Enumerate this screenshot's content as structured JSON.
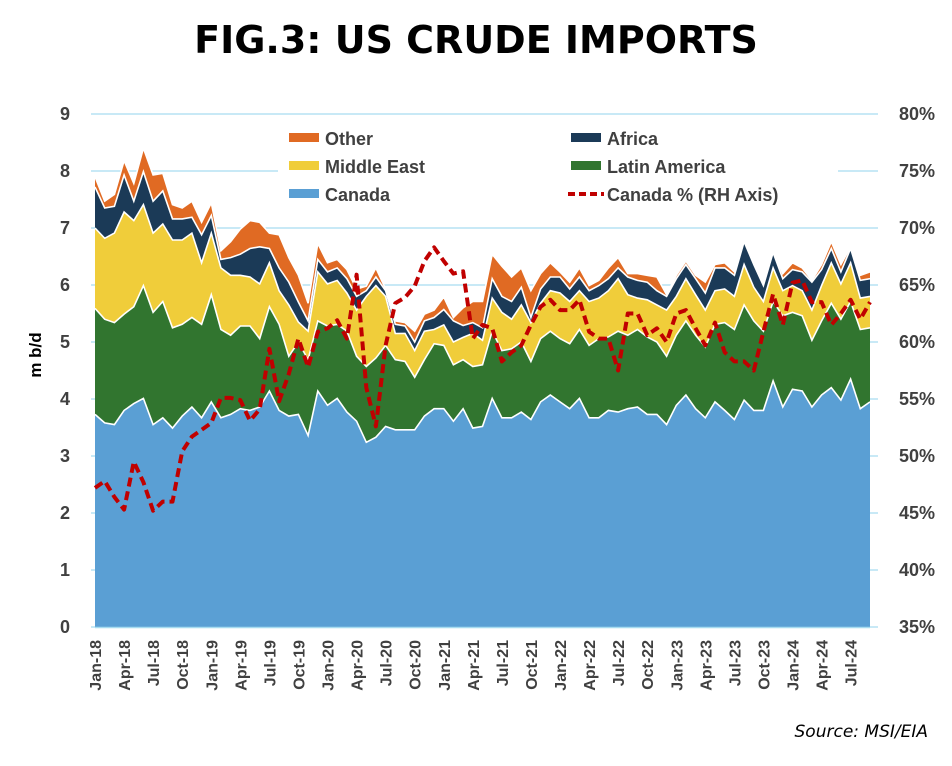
{
  "title": "FIG.3: US CRUDE IMPORTS",
  "source": "Source: MSI/EIA",
  "chart_data": {
    "type": "area",
    "stacked": true,
    "title": "FIG.3: US CRUDE IMPORTS",
    "ylabel": "m b/d",
    "ylim": [
      0,
      9
    ],
    "yticks": [
      "0",
      "1",
      "2",
      "3",
      "4",
      "5",
      "6",
      "7",
      "8",
      "9"
    ],
    "y2label": "Canada % (RH Axis)",
    "y2lim": [
      35,
      80
    ],
    "y2ticks": [
      "35%",
      "40%",
      "45%",
      "50%",
      "55%",
      "60%",
      "65%",
      "70%",
      "75%",
      "80%"
    ],
    "grid": true,
    "legend_placement": "top",
    "xticks": [
      "Jan-18",
      "Apr-18",
      "Jul-18",
      "Oct-18",
      "Jan-19",
      "Apr-19",
      "Jul-19",
      "Oct-19",
      "Jan-20",
      "Apr-20",
      "Jul-20",
      "Oct-20",
      "Jan-21",
      "Apr-21",
      "Jul-21",
      "Oct-21",
      "Jan-22",
      "Apr-22",
      "Jul-22",
      "Oct-22",
      "Jan-23",
      "Apr-23",
      "Jul-23",
      "Oct-23",
      "Jan-24",
      "Apr-24",
      "Jul-24"
    ],
    "x_range": [
      "Jan-18",
      "Sep-24"
    ],
    "months_count": 81,
    "colors": {
      "Canada": "#5a9fd4",
      "Latin America": "#31752f",
      "Middle East": "#f0cd3a",
      "Africa": "#1b3a57",
      "Other": "#e06a23",
      "Canada %": "#c00000",
      "grid": "#a6dcf0"
    },
    "legend": [
      {
        "name": "Other",
        "kind": "area"
      },
      {
        "name": "Africa",
        "kind": "area"
      },
      {
        "name": "Middle East",
        "kind": "area"
      },
      {
        "name": "Latin America",
        "kind": "area"
      },
      {
        "name": "Canada",
        "kind": "area"
      },
      {
        "name": "Canada % (RH Axis)",
        "kind": "dashed-line"
      }
    ],
    "series": [
      {
        "name": "Canada",
        "values": [
          3.73,
          3.58,
          3.55,
          3.8,
          3.92,
          4.01,
          3.55,
          3.67,
          3.49,
          3.7,
          3.86,
          3.67,
          3.95,
          3.67,
          3.73,
          3.83,
          3.8,
          3.86,
          4.14,
          3.8,
          3.7,
          3.73,
          3.36,
          4.14,
          3.89,
          4.01,
          3.77,
          3.61,
          3.24,
          3.33,
          3.52,
          3.46,
          3.46,
          3.46,
          3.7,
          3.83,
          3.83,
          3.61,
          3.83,
          3.49,
          3.52,
          4.01,
          3.67,
          3.67,
          3.77,
          3.64,
          3.95,
          4.07,
          3.95,
          3.83,
          4.01,
          3.67,
          3.67,
          3.8,
          3.77,
          3.83,
          3.86,
          3.73,
          3.73,
          3.55,
          3.89,
          4.07,
          3.83,
          3.67,
          3.95,
          3.8,
          3.64,
          3.98,
          3.8,
          3.8,
          4.32,
          3.86,
          4.17,
          4.14,
          3.86,
          4.07,
          4.2,
          3.98,
          4.35,
          3.83,
          3.95
        ]
      },
      {
        "name": "Latin America",
        "values": [
          1.86,
          1.82,
          1.79,
          1.69,
          1.7,
          1.98,
          1.97,
          2.04,
          1.76,
          1.61,
          1.57,
          1.64,
          1.88,
          1.55,
          1.39,
          1.45,
          1.48,
          1.2,
          1.48,
          1.51,
          1.05,
          1.27,
          1.33,
          1.23,
          1.39,
          1.3,
          1.42,
          1.14,
          1.33,
          1.39,
          1.42,
          1.23,
          1.2,
          0.92,
          0.99,
          1.14,
          1.11,
          0.99,
          0.86,
          1.08,
          1.08,
          1.18,
          1.18,
          1.21,
          1.23,
          1.02,
          1.11,
          1.12,
          1.11,
          1.14,
          1.21,
          1.27,
          1.39,
          1.29,
          1.42,
          1.29,
          1.36,
          1.36,
          1.27,
          1.2,
          1.23,
          1.3,
          1.29,
          1.24,
          1.36,
          1.54,
          1.58,
          1.67,
          1.57,
          1.39,
          1.39,
          1.6,
          1.35,
          1.32,
          1.17,
          1.3,
          1.48,
          1.42,
          1.36,
          1.39,
          1.3
        ]
      },
      {
        "name": "Middle East",
        "values": [
          1.41,
          1.42,
          1.57,
          1.79,
          1.51,
          1.42,
          1.39,
          1.36,
          1.54,
          1.48,
          1.48,
          1.08,
          1.08,
          1.08,
          1.05,
          0.89,
          0.86,
          0.96,
          0.77,
          0.59,
          0.9,
          0.35,
          0.5,
          0.86,
          0.74,
          0.77,
          0.67,
          0.81,
          1.23,
          1.27,
          0.86,
          0.46,
          0.49,
          0.47,
          0.5,
          0.25,
          0.36,
          0.4,
          0.39,
          0.58,
          0.43,
          0.58,
          0.67,
          0.52,
          0.65,
          0.68,
          0.62,
          0.71,
          0.8,
          0.74,
          0.68,
          0.77,
          0.71,
          0.81,
          0.92,
          0.71,
          0.55,
          0.65,
          0.65,
          0.81,
          0.68,
          0.74,
          0.71,
          0.65,
          0.59,
          0.59,
          0.58,
          0.71,
          0.59,
          0.52,
          0.59,
          0.44,
          0.47,
          0.44,
          0.53,
          0.62,
          0.71,
          0.62,
          0.68,
          0.55,
          0.55
        ]
      },
      {
        "name": "Africa",
        "values": [
          0.72,
          0.53,
          0.47,
          0.65,
          0.34,
          0.58,
          0.56,
          0.58,
          0.37,
          0.37,
          0.28,
          0.49,
          0.31,
          0.15,
          0.31,
          0.37,
          0.5,
          0.65,
          0.25,
          0.4,
          0.4,
          0.35,
          0.18,
          0.22,
          0.21,
          0.22,
          0.25,
          0.24,
          0.1,
          0.15,
          0.1,
          0.16,
          0.13,
          0.15,
          0.18,
          0.21,
          0.27,
          0.37,
          0.21,
          0.19,
          0.22,
          0.34,
          0.28,
          0.31,
          0.31,
          0.09,
          0.25,
          0.24,
          0.28,
          0.22,
          0.24,
          0.19,
          0.22,
          0.21,
          0.19,
          0.31,
          0.31,
          0.31,
          0.25,
          0.24,
          0.31,
          0.25,
          0.28,
          0.3,
          0.4,
          0.37,
          0.37,
          0.4,
          0.4,
          0.28,
          0.27,
          0.21,
          0.28,
          0.33,
          0.49,
          0.28,
          0.25,
          0.21,
          0.25,
          0.31,
          0.31
        ]
      },
      {
        "name": "Other",
        "values": [
          0.18,
          0.12,
          0.21,
          0.25,
          0.31,
          0.41,
          0.46,
          0.31,
          0.25,
          0.19,
          0.28,
          0.22,
          0.22,
          0.15,
          0.28,
          0.44,
          0.49,
          0.43,
          0.27,
          0.58,
          0.43,
          0.47,
          0.31,
          0.28,
          0.16,
          0.15,
          0.16,
          0.13,
          0.08,
          0.16,
          0.03,
          0.06,
          0.06,
          0.19,
          0.12,
          0.13,
          0.22,
          0.06,
          0.31,
          0.37,
          0.46,
          0.43,
          0.53,
          0.43,
          0.34,
          0.47,
          0.27,
          0.25,
          0.09,
          0.12,
          0.16,
          0.09,
          0.09,
          0.19,
          0.18,
          0.06,
          0.12,
          0.12,
          0.24,
          0.03,
          0.06,
          0.06,
          0.06,
          0.19,
          0.06,
          0.09,
          0.06,
          0.03,
          0.03,
          0.03,
          0.03,
          0.09,
          0.12,
          0.07,
          0.03,
          0.09,
          0.12,
          0.13,
          0.03,
          0.09,
          0.12
        ]
      }
    ],
    "line_series": {
      "name": "Canada % (RH Axis)",
      "axis": "right",
      "values": [
        47.2,
        47.8,
        46.4,
        45.3,
        49.5,
        47.7,
        45.2,
        46.0,
        46.0,
        50.4,
        51.7,
        52.3,
        52.9,
        55.1,
        55.1,
        54.9,
        53.1,
        54.1,
        59.4,
        54.8,
        57.2,
        60.3,
        57.8,
        60.9,
        61.2,
        61.9,
        60.3,
        65.9,
        56.0,
        52.6,
        59.7,
        63.4,
        63.9,
        64.9,
        67.1,
        68.3,
        67.1,
        66.0,
        66.2,
        60.3,
        61.5,
        61.2,
        58.3,
        59.1,
        59.7,
        61.5,
        63.1,
        63.7,
        62.8,
        62.8,
        63.7,
        60.9,
        60.3,
        60.3,
        57.5,
        62.5,
        62.5,
        60.6,
        61.2,
        60.0,
        62.5,
        62.8,
        61.2,
        59.7,
        61.7,
        59.1,
        58.3,
        58.3,
        57.5,
        60.9,
        64.2,
        61.5,
        65.2,
        65.4,
        63.5,
        63.5,
        61.5,
        62.5,
        63.7,
        62.0,
        63.5
      ]
    }
  }
}
